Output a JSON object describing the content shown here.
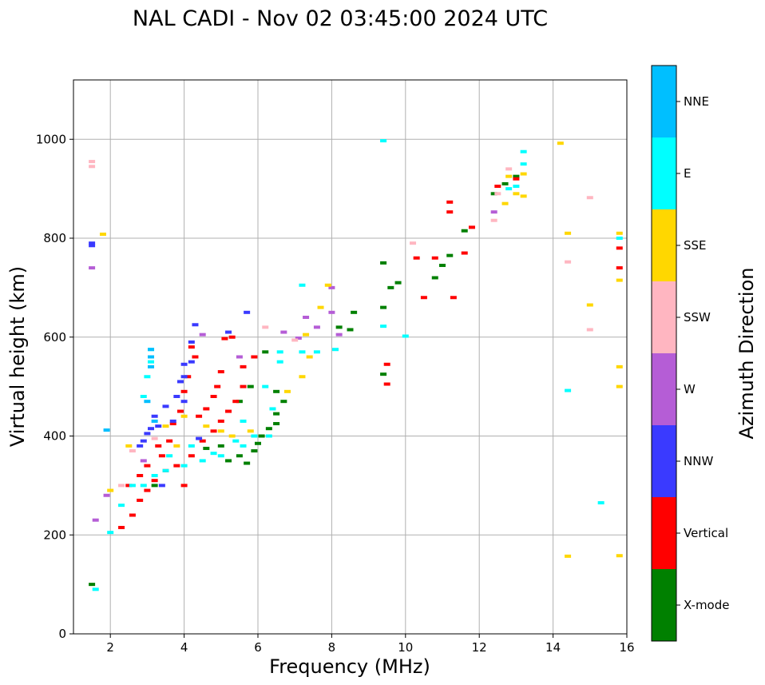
{
  "chart_data": {
    "type": "scatter",
    "title": "NAL CADI - Nov 02 03:45:00 2024 UTC",
    "xlabel": "Frequency (MHz)",
    "ylabel": "Virtual height (km)",
    "xlim": [
      1,
      16
    ],
    "ylim": [
      0,
      1120
    ],
    "xticks": [
      2,
      4,
      6,
      8,
      10,
      12,
      14,
      16
    ],
    "yticks": [
      0,
      200,
      400,
      600,
      800,
      1000
    ],
    "grid": true,
    "colorbar": {
      "label": "Azimuth Direction",
      "categories": [
        {
          "name": "X-mode",
          "color": "#008000"
        },
        {
          "name": "Vertical",
          "color": "#ff0000"
        },
        {
          "name": "NNW",
          "color": "#3a3aff"
        },
        {
          "name": "W",
          "color": "#b55dd6"
        },
        {
          "name": "SSW",
          "color": "#ffb6c1"
        },
        {
          "name": "SSE",
          "color": "#ffd700"
        },
        {
          "name": "E",
          "color": "#00ffff"
        },
        {
          "name": "NNE",
          "color": "#00bfff"
        }
      ]
    },
    "series": [
      {
        "name": "X-mode",
        "points": [
          [
            5.2,
            350
          ],
          [
            5.5,
            360
          ],
          [
            5.7,
            345
          ],
          [
            5.9,
            370
          ],
          [
            6.0,
            385
          ],
          [
            6.1,
            400
          ],
          [
            6.3,
            415
          ],
          [
            6.5,
            425
          ],
          [
            6.5,
            445
          ],
          [
            6.7,
            470
          ],
          [
            5.0,
            380
          ],
          [
            4.6,
            375
          ],
          [
            6.5,
            490
          ],
          [
            5.8,
            500
          ],
          [
            5.5,
            470
          ],
          [
            8.2,
            620
          ],
          [
            8.6,
            650
          ],
          [
            8.5,
            615
          ],
          [
            9.4,
            660
          ],
          [
            9.4,
            750
          ],
          [
            9.6,
            700
          ],
          [
            9.8,
            710
          ],
          [
            9.4,
            525
          ],
          [
            10.8,
            720
          ],
          [
            11.0,
            745
          ],
          [
            11.2,
            765
          ],
          [
            11.6,
            815
          ],
          [
            12.4,
            890
          ],
          [
            12.7,
            910
          ],
          [
            13.0,
            925
          ],
          [
            6.2,
            570
          ],
          [
            3.2,
            300
          ],
          [
            1.5,
            100
          ]
        ]
      },
      {
        "name": "Vertical",
        "points": [
          [
            2.3,
            215
          ],
          [
            2.6,
            240
          ],
          [
            2.8,
            270
          ],
          [
            3.0,
            290
          ],
          [
            3.2,
            310
          ],
          [
            3.5,
            330
          ],
          [
            3.8,
            340
          ],
          [
            4.0,
            300
          ],
          [
            4.2,
            360
          ],
          [
            4.5,
            390
          ],
          [
            4.8,
            410
          ],
          [
            5.0,
            430
          ],
          [
            5.2,
            450
          ],
          [
            5.4,
            470
          ],
          [
            5.6,
            500
          ],
          [
            5.0,
            530
          ],
          [
            4.8,
            480
          ],
          [
            4.4,
            440
          ],
          [
            4.0,
            490
          ],
          [
            3.9,
            450
          ],
          [
            4.1,
            520
          ],
          [
            4.3,
            560
          ],
          [
            4.2,
            580
          ],
          [
            3.6,
            390
          ],
          [
            3.4,
            360
          ],
          [
            3.0,
            340
          ],
          [
            2.8,
            320
          ],
          [
            2.5,
            300
          ],
          [
            5.6,
            540
          ],
          [
            5.9,
            560
          ],
          [
            5.3,
            600
          ],
          [
            5.1,
            597
          ],
          [
            9.5,
            505
          ],
          [
            9.5,
            545
          ],
          [
            10.5,
            680
          ],
          [
            10.8,
            760
          ],
          [
            11.3,
            680
          ],
          [
            11.6,
            770
          ],
          [
            11.8,
            822
          ],
          [
            11.2,
            873
          ],
          [
            11.2,
            853
          ],
          [
            12.5,
            905
          ],
          [
            13.0,
            920
          ],
          [
            15.8,
            780
          ],
          [
            15.8,
            740
          ],
          [
            10.3,
            760
          ],
          [
            4.6,
            455
          ],
          [
            4.9,
            500
          ],
          [
            3.7,
            425
          ],
          [
            3.3,
            380
          ]
        ]
      },
      {
        "name": "NNW",
        "points": [
          [
            2.8,
            380
          ],
          [
            3.0,
            405
          ],
          [
            3.2,
            440
          ],
          [
            3.5,
            460
          ],
          [
            3.8,
            480
          ],
          [
            4.0,
            520
          ],
          [
            4.2,
            550
          ],
          [
            4.2,
            590
          ],
          [
            4.3,
            625
          ],
          [
            3.7,
            430
          ],
          [
            3.3,
            420
          ],
          [
            3.1,
            415
          ],
          [
            2.9,
            390
          ],
          [
            4.0,
            470
          ],
          [
            4.4,
            395
          ],
          [
            5.2,
            610
          ],
          [
            5.7,
            650
          ],
          [
            1.5,
            785
          ],
          [
            1.5,
            790
          ],
          [
            3.4,
            300
          ],
          [
            3.9,
            510
          ],
          [
            4.0,
            545
          ]
        ]
      },
      {
        "name": "W",
        "points": [
          [
            1.6,
            230
          ],
          [
            1.5,
            740
          ],
          [
            4.5,
            605
          ],
          [
            6.7,
            610
          ],
          [
            7.1,
            598
          ],
          [
            7.3,
            640
          ],
          [
            7.6,
            620
          ],
          [
            8.0,
            650
          ],
          [
            8.0,
            700
          ],
          [
            8.2,
            605
          ],
          [
            12.4,
            853
          ],
          [
            1.9,
            280
          ],
          [
            2.9,
            350
          ],
          [
            5.5,
            560
          ]
        ]
      },
      {
        "name": "SSW",
        "points": [
          [
            1.5,
            945
          ],
          [
            1.5,
            955
          ],
          [
            2.3,
            300
          ],
          [
            2.6,
            370
          ],
          [
            3.2,
            395
          ],
          [
            12.5,
            890
          ],
          [
            12.8,
            940
          ],
          [
            14.4,
            752
          ],
          [
            15.0,
            882
          ],
          [
            15.0,
            615
          ],
          [
            12.4,
            836
          ],
          [
            10.2,
            790
          ],
          [
            6.2,
            620
          ],
          [
            7.0,
            594
          ]
        ]
      },
      {
        "name": "SSE",
        "points": [
          [
            2.0,
            290
          ],
          [
            2.5,
            380
          ],
          [
            3.5,
            420
          ],
          [
            4.0,
            440
          ],
          [
            4.6,
            420
          ],
          [
            5.0,
            410
          ],
          [
            5.3,
            400
          ],
          [
            5.8,
            410
          ],
          [
            6.8,
            490
          ],
          [
            7.2,
            520
          ],
          [
            7.4,
            560
          ],
          [
            7.3,
            605
          ],
          [
            7.7,
            660
          ],
          [
            7.9,
            705
          ],
          [
            12.7,
            870
          ],
          [
            12.8,
            925
          ],
          [
            13.0,
            890
          ],
          [
            13.2,
            885
          ],
          [
            13.2,
            930
          ],
          [
            14.2,
            992
          ],
          [
            14.4,
            810
          ],
          [
            14.4,
            157
          ],
          [
            15.0,
            665
          ],
          [
            15.8,
            158
          ],
          [
            15.8,
            540
          ],
          [
            15.8,
            500
          ],
          [
            15.8,
            810
          ],
          [
            15.8,
            715
          ],
          [
            3.8,
            380
          ],
          [
            1.8,
            808
          ]
        ]
      },
      {
        "name": "E",
        "points": [
          [
            1.6,
            90
          ],
          [
            2.0,
            205
          ],
          [
            2.3,
            260
          ],
          [
            2.6,
            300
          ],
          [
            2.9,
            300
          ],
          [
            3.2,
            320
          ],
          [
            3.5,
            330
          ],
          [
            4.0,
            340
          ],
          [
            4.5,
            350
          ],
          [
            4.8,
            365
          ],
          [
            5.0,
            360
          ],
          [
            5.4,
            390
          ],
          [
            5.6,
            380
          ],
          [
            5.9,
            400
          ],
          [
            6.3,
            400
          ],
          [
            6.6,
            550
          ],
          [
            6.6,
            570
          ],
          [
            7.2,
            570
          ],
          [
            7.6,
            570
          ],
          [
            8.1,
            575
          ],
          [
            7.2,
            705
          ],
          [
            9.4,
            622
          ],
          [
            10.0,
            602
          ],
          [
            12.8,
            900
          ],
          [
            13.0,
            905
          ],
          [
            13.2,
            950
          ],
          [
            13.2,
            975
          ],
          [
            14.4,
            492
          ],
          [
            15.3,
            265
          ],
          [
            15.8,
            800
          ],
          [
            3.1,
            550
          ],
          [
            3.1,
            575
          ],
          [
            3.0,
            520
          ],
          [
            2.9,
            480
          ],
          [
            5.6,
            430
          ],
          [
            4.2,
            380
          ],
          [
            3.6,
            360
          ],
          [
            6.2,
            500
          ],
          [
            6.4,
            455
          ],
          [
            9.4,
            997
          ]
        ]
      },
      {
        "name": "NNE",
        "points": [
          [
            3.1,
            560
          ],
          [
            3.1,
            575
          ],
          [
            3.1,
            540
          ],
          [
            3.2,
            430
          ],
          [
            3.0,
            470
          ],
          [
            1.9,
            412
          ]
        ]
      }
    ]
  }
}
